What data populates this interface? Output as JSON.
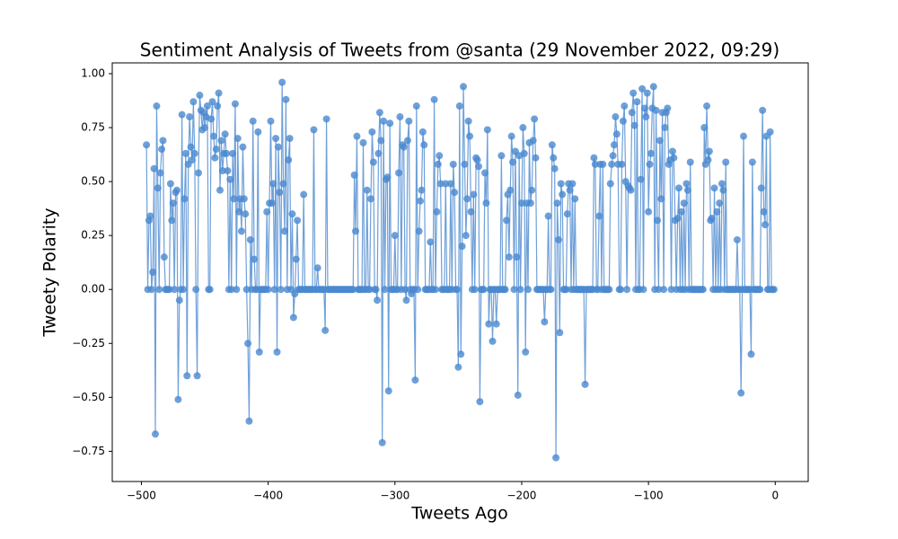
{
  "chart_data": {
    "type": "line",
    "title": "Sentiment Analysis of Tweets from @santa (29 November 2022, 09:29)",
    "xlabel": "Tweets Ago",
    "ylabel": "Tweety Polarity",
    "xlim": [
      -523,
      26
    ],
    "ylim": [
      -0.89,
      1.05
    ],
    "xticks": [
      {
        "value": -500,
        "label": "−500"
      },
      {
        "value": -400,
        "label": "−400"
      },
      {
        "value": -300,
        "label": "−300"
      },
      {
        "value": -200,
        "label": "−200"
      },
      {
        "value": -100,
        "label": "−100"
      },
      0
    ],
    "yticks": [
      {
        "value": -0.75,
        "label": "−0.75"
      },
      {
        "value": -0.5,
        "label": "−0.50"
      },
      {
        "value": -0.25,
        "label": "−0.25"
      },
      {
        "value": 0,
        "label": "0.00"
      },
      {
        "value": 0.25,
        "label": "0.25"
      },
      {
        "value": 0.5,
        "label": "0.50"
      },
      {
        "value": 0.75,
        "label": "0.75"
      },
      {
        "value": 1,
        "label": "1.00"
      }
    ],
    "grid": false,
    "x": [
      -496,
      -495,
      -494,
      -493,
      -492,
      -491,
      -490,
      -489,
      -488,
      -487,
      -486,
      -485,
      -484,
      -483,
      -482,
      -481,
      -480,
      -479,
      -478,
      -477,
      -476,
      -475,
      -474,
      -473,
      -472,
      -471,
      -470,
      -469,
      -468,
      -467,
      -466,
      -465,
      -464,
      -463,
      -462,
      -461,
      -460,
      -459,
      -458,
      -457,
      -456,
      -455,
      -454,
      -453,
      -452,
      -451,
      -450,
      -449,
      -448,
      -447,
      -446,
      -445,
      -444,
      -443,
      -442,
      -441,
      -440,
      -439,
      -438,
      -437,
      -436,
      -435,
      -434,
      -433,
      -432,
      -431,
      -430,
      -429,
      -428,
      -427,
      -426,
      -425,
      -424,
      -423,
      -422,
      -421,
      -420,
      -419,
      -418,
      -417,
      -416,
      -415,
      -414,
      -413,
      -412,
      -411,
      -410,
      -409,
      -408,
      -407,
      -406,
      -405,
      -404,
      -403,
      -402,
      -401,
      -400,
      -399,
      -398,
      -397,
      -396,
      -395,
      -394,
      -393,
      -392,
      -391,
      -390,
      -389,
      -388,
      -387,
      -386,
      -385,
      -384,
      -383,
      -382,
      -381,
      -380,
      -379,
      -378,
      -377,
      -376,
      -375,
      -374,
      -373,
      -372,
      -371,
      -370,
      -369,
      -368,
      -367,
      -366,
      -365,
      -364,
      -363,
      -362,
      -361,
      -360,
      -359,
      -358,
      -357,
      -356,
      -355,
      -354,
      -353,
      -352,
      -351,
      -350,
      -349,
      -348,
      -347,
      -346,
      -345,
      -344,
      -343,
      -342,
      -341,
      -340,
      -339,
      -338,
      -337,
      -336,
      -335,
      -334,
      -333,
      -332,
      -331,
      -330,
      -329,
      -328,
      -327,
      -326,
      -325,
      -324,
      -323,
      -322,
      -321,
      -320,
      -319,
      -318,
      -317,
      -316,
      -315,
      -314,
      -313,
      -312,
      -311,
      -310,
      -309,
      -308,
      -307,
      -306,
      -305,
      -304,
      -303,
      -302,
      -301,
      -300,
      -299,
      -298,
      -297,
      -296,
      -295,
      -294,
      -293,
      -292,
      -291,
      -290,
      -289,
      -288,
      -287,
      -286,
      -285,
      -284,
      -283,
      -282,
      -281,
      -280,
      -279,
      -278,
      -277,
      -276,
      -275,
      -274,
      -273,
      -272,
      -271,
      -270,
      -269,
      -268,
      -267,
      -266,
      -265,
      -264,
      -263,
      -262,
      -261,
      -260,
      -259,
      -258,
      -257,
      -256,
      -255,
      -254,
      -253,
      -252,
      -251,
      -250,
      -249,
      -248,
      -247,
      -246,
      -245,
      -244,
      -243,
      -242,
      -241,
      -240,
      -239,
      -238,
      -237,
      -236,
      -235,
      -234,
      -233,
      -232,
      -231,
      -230,
      -229,
      -228,
      -227,
      -226,
      -225,
      -224,
      -223,
      -222,
      -221,
      -220,
      -219,
      -218,
      -217,
      -216,
      -215,
      -214,
      -213,
      -212,
      -211,
      -210,
      -209,
      -208,
      -207,
      -206,
      -205,
      -204,
      -203,
      -202,
      -201,
      -200,
      -199,
      -198,
      -197,
      -196,
      -195,
      -194,
      -193,
      -192,
      -191,
      -190,
      -189,
      -188,
      -187,
      -186,
      -185,
      -184,
      -183,
      -182,
      -181,
      -180,
      -179,
      -178,
      -177,
      -176,
      -175,
      -174,
      -173,
      -172,
      -171,
      -170,
      -169,
      -168,
      -167,
      -166,
      -165,
      -164,
      -163,
      -162,
      -161,
      -160,
      -159,
      -158,
      -157,
      -156,
      -155,
      -154,
      -153,
      -152,
      -151,
      -150,
      -149,
      -148,
      -147,
      -146,
      -145,
      -144,
      -143,
      -142,
      -141,
      -140,
      -139,
      -138,
      -137,
      -136,
      -135,
      -134,
      -133,
      -132,
      -131,
      -130,
      -129,
      -128,
      -127,
      -126,
      -125,
      -124,
      -123,
      -122,
      -121,
      -120,
      -119,
      -118,
      -117,
      -116,
      -115,
      -114,
      -113,
      -112,
      -111,
      -110,
      -109,
      -108,
      -107,
      -106,
      -105,
      -104,
      -103,
      -102,
      -101,
      -100,
      -99,
      -98,
      -97,
      -96,
      -95,
      -94,
      -93,
      -92,
      -91,
      -90,
      -89,
      -88,
      -87,
      -86,
      -85,
      -84,
      -83,
      -82,
      -81,
      -80,
      -79,
      -78,
      -77,
      -76,
      -75,
      -74,
      -73,
      -72,
      -71,
      -70,
      -69,
      -68,
      -67,
      -66,
      -65,
      -64,
      -63,
      -62,
      -61,
      -60,
      -59,
      -58,
      -57,
      -56,
      -55,
      -54,
      -53,
      -52,
      -51,
      -50,
      -49,
      -48,
      -47,
      -46,
      -45,
      -44,
      -43,
      -42,
      -41,
      -40,
      -39,
      -38,
      -37,
      -36,
      -35,
      -34,
      -33,
      -32,
      -31,
      -30,
      -29,
      -28,
      -27,
      -26,
      -25,
      -24,
      -23,
      -22,
      -21,
      -20,
      -19,
      -18,
      -17,
      -16,
      -15,
      -14,
      -13,
      -12,
      -11,
      -10,
      -9,
      -8,
      -7,
      -6,
      -5,
      -4,
      -3,
      -2,
      -1
    ],
    "series": [
      {
        "color": "#4a88d0",
        "values": [
          0.67,
          0,
          0.32,
          0.34,
          0,
          0.08,
          0.56,
          -0.67,
          0.85,
          0.47,
          0,
          0.54,
          0.65,
          0.69,
          0.15,
          0,
          0,
          0,
          0,
          0.49,
          0.32,
          0.4,
          0,
          0.45,
          0.46,
          -0.51,
          -0.05,
          0,
          0.81,
          0,
          0.42,
          0.63,
          -0.4,
          0.58,
          0.8,
          0.66,
          0.6,
          0.87,
          0.63,
          0,
          -0.4,
          0.54,
          0.9,
          0.83,
          0.74,
          0.82,
          0.75,
          0.8,
          0.85,
          0,
          0,
          0.79,
          0.87,
          0.71,
          0.61,
          0.65,
          0.85,
          0.91,
          0.46,
          0.69,
          0.55,
          0.63,
          0.72,
          0.63,
          0.55,
          0,
          0.51,
          0,
          0.63,
          0.42,
          0.86,
          0,
          0.7,
          0.36,
          0.42,
          0.27,
          0.66,
          0.42,
          0.35,
          0,
          -0.25,
          -0.61,
          0.23,
          0,
          0.78,
          0.14,
          0,
          0,
          0.73,
          -0.29,
          0,
          0,
          0,
          0,
          0,
          0.36,
          0,
          0.4,
          0.78,
          0.4,
          0.49,
          0,
          0.7,
          -0.29,
          0.66,
          0.45,
          0,
          0.96,
          0.49,
          0.27,
          0.88,
          0,
          0.6,
          0.7,
          0,
          0.35,
          -0.13,
          -0.02,
          0.14,
          0.32,
          0,
          0,
          0,
          0,
          0.44,
          0,
          0,
          0,
          0,
          0,
          0,
          0,
          0.74,
          0,
          0,
          0.1,
          0,
          0,
          0,
          0,
          0,
          -0.19,
          0.79,
          0,
          0,
          0,
          0,
          0,
          0,
          0,
          0,
          0,
          0,
          0,
          0,
          0,
          0,
          0,
          0,
          0,
          0,
          0,
          0,
          0,
          0.53,
          0.27,
          0.71,
          0,
          0,
          0,
          0,
          0.68,
          0,
          0,
          0.46,
          0,
          0,
          0.42,
          0.73,
          0.59,
          0,
          0,
          -0.05,
          0.63,
          0.82,
          0.69,
          -0.71,
          0.78,
          0,
          0.51,
          0.52,
          -0.47,
          0.77,
          0,
          0,
          0,
          0.25,
          0,
          0,
          0.54,
          0.8,
          0,
          0.67,
          0.66,
          0,
          -0.05,
          0.69,
          0.78,
          0,
          -0.02,
          0,
          0,
          -0.42,
          0.85,
          0,
          0.27,
          0.41,
          0.46,
          0.73,
          0.67,
          0,
          0,
          0,
          0,
          0.22,
          0,
          0,
          0.88,
          0,
          0.36,
          0.58,
          0.62,
          0.49,
          0,
          0,
          0,
          0.49,
          0,
          0,
          0,
          0.49,
          0,
          0.58,
          0.45,
          0,
          0,
          -0.36,
          0.85,
          -0.3,
          0.2,
          0.94,
          0.58,
          0.25,
          0.42,
          0.78,
          0.71,
          0.36,
          0,
          0.44,
          0,
          0.61,
          0.6,
          0.57,
          -0.52,
          0,
          0,
          0,
          0.54,
          0.4,
          0.74,
          -0.16,
          0,
          0,
          -0.24,
          0,
          0,
          -0.16,
          0,
          0,
          0,
          0.62,
          0,
          0,
          0,
          0.32,
          0.44,
          0.15,
          0.46,
          0.71,
          0.59,
          0,
          0.64,
          0.15,
          -0.49,
          0.62,
          0,
          0.4,
          0.75,
          0.63,
          -0.29,
          0.4,
          0,
          0.68,
          0.4,
          0.46,
          0.69,
          0.79,
          0.61,
          0,
          0,
          0,
          0,
          0,
          0,
          -0.15,
          0,
          0,
          0.34,
          0,
          0,
          0.67,
          0.61,
          0.56,
          -0.78,
          0.4,
          0.23,
          -0.2,
          0.49,
          0.44,
          0,
          0,
          0,
          0.35,
          0.49,
          0.46,
          0,
          0.49,
          0,
          0.42,
          0,
          0,
          0,
          0,
          0,
          0,
          0,
          -0.44,
          0,
          0,
          0,
          0,
          0,
          0,
          0.61,
          0.58,
          0,
          0,
          0.34,
          0.58,
          0,
          0.58,
          0,
          0,
          0,
          0,
          0,
          0.49,
          0.58,
          0.62,
          0.67,
          0.8,
          0.72,
          0.58,
          0,
          0,
          0.58,
          0.78,
          0.85,
          0.5,
          0,
          0.48,
          0.47,
          0.46,
          0.82,
          0.91,
          0.76,
          0,
          0.87,
          0,
          0,
          0.51,
          0.93,
          0,
          0.84,
          0.8,
          0.91,
          0.36,
          0.58,
          0.63,
          0.84,
          0.94,
          0,
          0.83,
          0.32,
          0,
          0.69,
          0.42,
          0.82,
          0,
          0.75,
          0.82,
          0.84,
          0.58,
          0.6,
          0,
          0.64,
          0.61,
          0.32,
          0,
          0.33,
          0.47,
          0,
          0.36,
          0,
          0.4,
          0,
          0.49,
          0.46,
          0,
          0.59,
          0,
          0,
          0,
          0,
          0,
          0,
          0,
          0,
          0,
          0,
          0.75,
          0.58,
          0.85,
          0.6,
          0.64,
          0.32,
          0.33,
          0,
          0.47,
          0,
          0.36,
          0,
          0.4,
          0,
          0.49,
          0.46,
          0,
          0.59,
          0,
          0,
          0,
          0,
          0,
          0,
          0,
          0,
          0.23,
          0,
          0,
          -0.48,
          0,
          0.71,
          0,
          0,
          0,
          0,
          0,
          -0.3,
          0.59,
          0,
          0,
          0,
          0,
          0,
          0,
          0.47,
          0.83,
          0.36,
          0.3,
          0.71,
          0,
          0,
          0.73,
          0,
          0,
          0
        ]
      }
    ]
  }
}
